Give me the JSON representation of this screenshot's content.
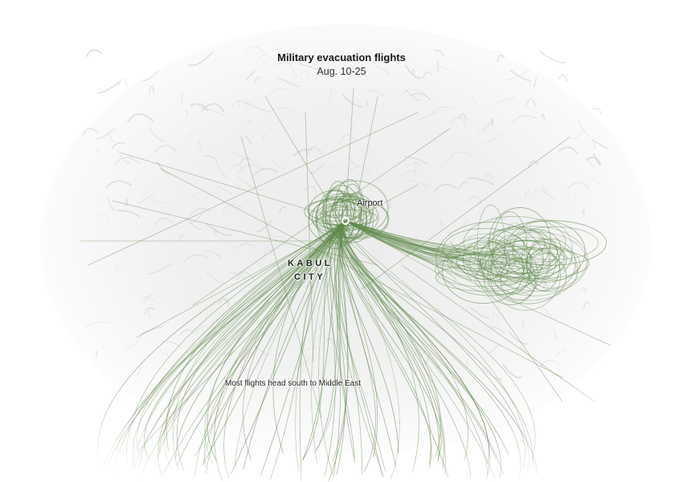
{
  "title": "Military evacuation flights",
  "subtitle": "Aug. 10-25",
  "labels": {
    "airport": "Airport",
    "city_line1": "KABUL",
    "city_line2": "CITY",
    "south_note": "Most flights head south to Middle East"
  },
  "colors": {
    "flight_track": "#5f8a4c",
    "terrain_light": "#f4f4f4",
    "terrain_ridge": "#d9d9d9",
    "text": "#1a1a1a",
    "background": "#ffffff"
  },
  "map_features": [
    "terrain-hillshade",
    "flight-tracks",
    "airport-marker"
  ]
}
